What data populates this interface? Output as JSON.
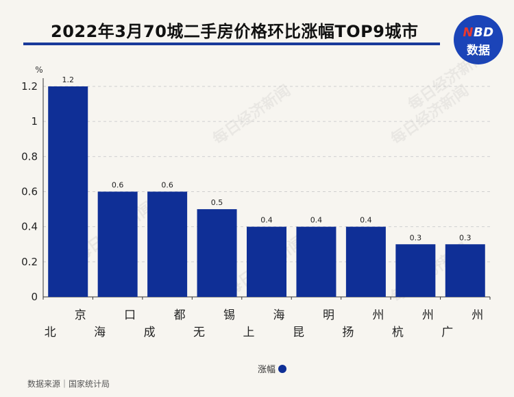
{
  "title": "2022年3月70城二手房价格环比涨幅TOP9城市",
  "logo": {
    "line1_n": "N",
    "line1_rest": "BD",
    "line2": "数据"
  },
  "source": "数据来源｜国家统计局",
  "watermark": "每日经济新闻",
  "colors": {
    "bar": "#0f2f96",
    "title_rule": "#1a3a9a",
    "logo_bg": "#1b44b8",
    "logo_n": "#e8382f"
  },
  "chart_data": {
    "type": "bar",
    "unit_label": "%",
    "categories": [
      "北京",
      "海口",
      "成都",
      "无锡",
      "上海",
      "昆明",
      "扬州",
      "杭州",
      "广州"
    ],
    "series": [
      {
        "name": "涨幅",
        "values": [
          1.2,
          0.6,
          0.6,
          0.5,
          0.4,
          0.4,
          0.4,
          0.3,
          0.3
        ]
      }
    ],
    "data_labels": [
      "1.2",
      "0.6",
      "0.6",
      "0.5",
      "0.4",
      "0.4",
      "0.4",
      "0.3",
      "0.3"
    ],
    "yticks": [
      "0",
      "0.2",
      "0.4",
      "0.6",
      "0.8",
      "1",
      "1.2"
    ],
    "ylim": [
      0,
      1.2
    ],
    "grid": true,
    "legend_position": "bottom-center"
  }
}
